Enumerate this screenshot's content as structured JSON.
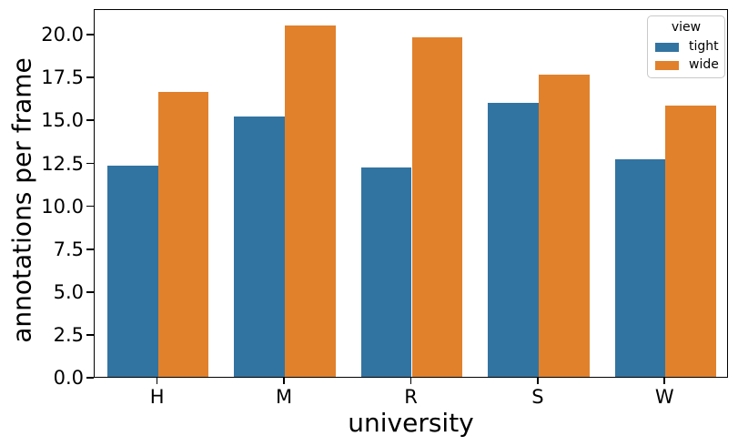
{
  "chart_data": {
    "type": "bar",
    "title": "",
    "xlabel": "university",
    "ylabel": "annotations per frame",
    "categories": [
      "H",
      "M",
      "R",
      "S",
      "W"
    ],
    "series": [
      {
        "name": "tight",
        "color": "#3274a1",
        "values": [
          12.3,
          15.2,
          12.2,
          16.0,
          12.7
        ]
      },
      {
        "name": "wide",
        "color": "#e1812c",
        "values": [
          16.6,
          20.5,
          19.8,
          17.6,
          15.8
        ]
      }
    ],
    "ylim": [
      0,
      21.5
    ],
    "yticks": [
      "0.0",
      "2.5",
      "5.0",
      "7.5",
      "10.0",
      "12.5",
      "15.0",
      "17.5",
      "20.0"
    ],
    "grid": false,
    "legend": {
      "title": "view",
      "position": "upper right",
      "entries": [
        "tight",
        "wide"
      ]
    }
  },
  "colors": {
    "tight_bar": "#3274a1",
    "wide_bar": "#e1812c",
    "axis": "#000000",
    "legend_border": "#c9c9c9",
    "background": "#ffffff"
  }
}
